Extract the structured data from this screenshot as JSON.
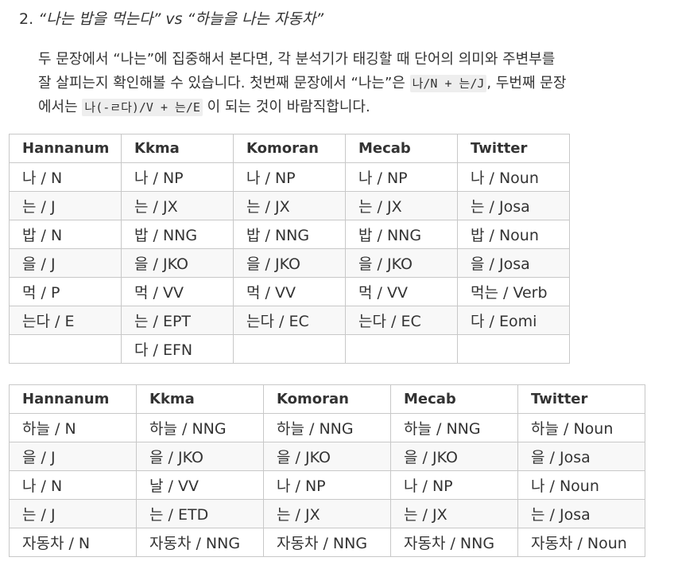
{
  "heading": {
    "number": "2.",
    "title": "“나는 밥을 먹는다” vs “하늘을 나는 자동차”"
  },
  "paragraph": {
    "line1": "두 문장에서 “나는”에 집중해서 본다면, 각 분석기가 태깅할 때 단어의 의미와 주변부를",
    "line2_pre": "잘 살피는지 확인해볼 수 있습니다. 첫번째 문장에서 “나는”은 ",
    "line2_code": "나/N + 는/J",
    "line2_post": ", 두번째 문장",
    "line3_pre": "에서는 ",
    "line3_code": "나(-ㄹ다)/V + 는/E",
    "line3_post": " 이 되는 것이 바람직합니다."
  },
  "table1": {
    "headers": [
      "Hannanum",
      "Kkma",
      "Komoran",
      "Mecab",
      "Twitter"
    ],
    "rows": [
      [
        "나 / N",
        "나 / NP",
        "나 / NP",
        "나 / NP",
        "나 / Noun"
      ],
      [
        "는 / J",
        "는 / JX",
        "는 / JX",
        "는 / JX",
        "는 / Josa"
      ],
      [
        "밥 / N",
        "밥 / NNG",
        "밥 / NNG",
        "밥 / NNG",
        "밥 / Noun"
      ],
      [
        "을 / J",
        "을 / JKO",
        "을 / JKO",
        "을 / JKO",
        "을 / Josa"
      ],
      [
        "먹 / P",
        "먹 / VV",
        "먹 / VV",
        "먹 / VV",
        "먹는 / Verb"
      ],
      [
        "는다 / E",
        "는 / EPT",
        "는다 / EC",
        "는다 / EC",
        "다 / Eomi"
      ],
      [
        "",
        "다 / EFN",
        "",
        "",
        ""
      ]
    ]
  },
  "table2": {
    "headers": [
      "Hannanum",
      "Kkma",
      "Komoran",
      "Mecab",
      "Twitter"
    ],
    "rows": [
      [
        "하늘 / N",
        "하늘 / NNG",
        "하늘 / NNG",
        "하늘 / NNG",
        "하늘 / Noun"
      ],
      [
        "을 / J",
        "을 / JKO",
        "을 / JKO",
        "을 / JKO",
        "을 / Josa"
      ],
      [
        "나 / N",
        "날 / VV",
        "나 / NP",
        "나 / NP",
        "나 / Noun"
      ],
      [
        "는 / J",
        "는 / ETD",
        "는 / JX",
        "는 / JX",
        "는 / Josa"
      ],
      [
        "자동차 / N",
        "자동차 / NNG",
        "자동차 / NNG",
        "자동차 / NNG",
        "자동차 / Noun"
      ]
    ]
  }
}
